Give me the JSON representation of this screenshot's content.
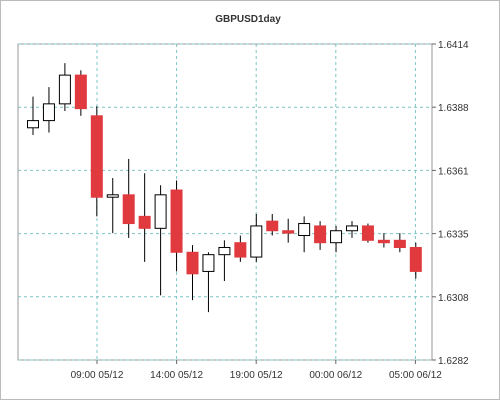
{
  "chart_data": {
    "type": "candlestick",
    "title": "GBPUSD1day",
    "y_ticks": [
      "1.6414",
      "1.6388",
      "1.6361",
      "1.6335",
      "1.6308",
      "1.6282"
    ],
    "ylim": [
      1.6282,
      1.6414
    ],
    "x_ticks": [
      "09:00 05/12",
      "14:00 05/12",
      "19:00 05/12",
      "00:00 06/12",
      "05:00 06/12"
    ],
    "grid": true,
    "colors": {
      "up_fill": "#ffffff",
      "down_fill": "#e03a3e",
      "wick": "#000000",
      "grid": "#7fc4c4"
    },
    "candles": [
      {
        "o": 1.6379,
        "h": 1.6392,
        "l": 1.6376,
        "c": 1.6382
      },
      {
        "o": 1.6382,
        "h": 1.6396,
        "l": 1.6377,
        "c": 1.6389
      },
      {
        "o": 1.6389,
        "h": 1.6406,
        "l": 1.6386,
        "c": 1.6401
      },
      {
        "o": 1.6401,
        "h": 1.6403,
        "l": 1.6384,
        "c": 1.6387
      },
      {
        "o": 1.6384,
        "h": 1.6388,
        "l": 1.6342,
        "c": 1.635
      },
      {
        "o": 1.635,
        "h": 1.6358,
        "l": 1.6335,
        "c": 1.6351
      },
      {
        "o": 1.6351,
        "h": 1.6366,
        "l": 1.6333,
        "c": 1.6339
      },
      {
        "o": 1.6342,
        "h": 1.636,
        "l": 1.6323,
        "c": 1.6337
      },
      {
        "o": 1.6337,
        "h": 1.6355,
        "l": 1.6309,
        "c": 1.6351
      },
      {
        "o": 1.6353,
        "h": 1.6357,
        "l": 1.6319,
        "c": 1.6327
      },
      {
        "o": 1.6327,
        "h": 1.633,
        "l": 1.6307,
        "c": 1.6318
      },
      {
        "o": 1.6319,
        "h": 1.6327,
        "l": 1.6302,
        "c": 1.6326
      },
      {
        "o": 1.6326,
        "h": 1.6332,
        "l": 1.6315,
        "c": 1.6329
      },
      {
        "o": 1.6331,
        "h": 1.6334,
        "l": 1.6323,
        "c": 1.6325
      },
      {
        "o": 1.6325,
        "h": 1.6343,
        "l": 1.6323,
        "c": 1.6338
      },
      {
        "o": 1.634,
        "h": 1.6343,
        "l": 1.6334,
        "c": 1.6336
      },
      {
        "o": 1.6336,
        "h": 1.6341,
        "l": 1.6331,
        "c": 1.6335
      },
      {
        "o": 1.6334,
        "h": 1.6342,
        "l": 1.6327,
        "c": 1.6339
      },
      {
        "o": 1.6338,
        "h": 1.634,
        "l": 1.6328,
        "c": 1.6331
      },
      {
        "o": 1.6331,
        "h": 1.6338,
        "l": 1.6327,
        "c": 1.6336
      },
      {
        "o": 1.6336,
        "h": 1.634,
        "l": 1.6333,
        "c": 1.6338
      },
      {
        "o": 1.6338,
        "h": 1.6339,
        "l": 1.6331,
        "c": 1.6332
      },
      {
        "o": 1.6332,
        "h": 1.6335,
        "l": 1.6329,
        "c": 1.6331
      },
      {
        "o": 1.6332,
        "h": 1.6335,
        "l": 1.6327,
        "c": 1.6329
      },
      {
        "o": 1.6329,
        "h": 1.6331,
        "l": 1.6316,
        "c": 1.6319
      }
    ]
  }
}
